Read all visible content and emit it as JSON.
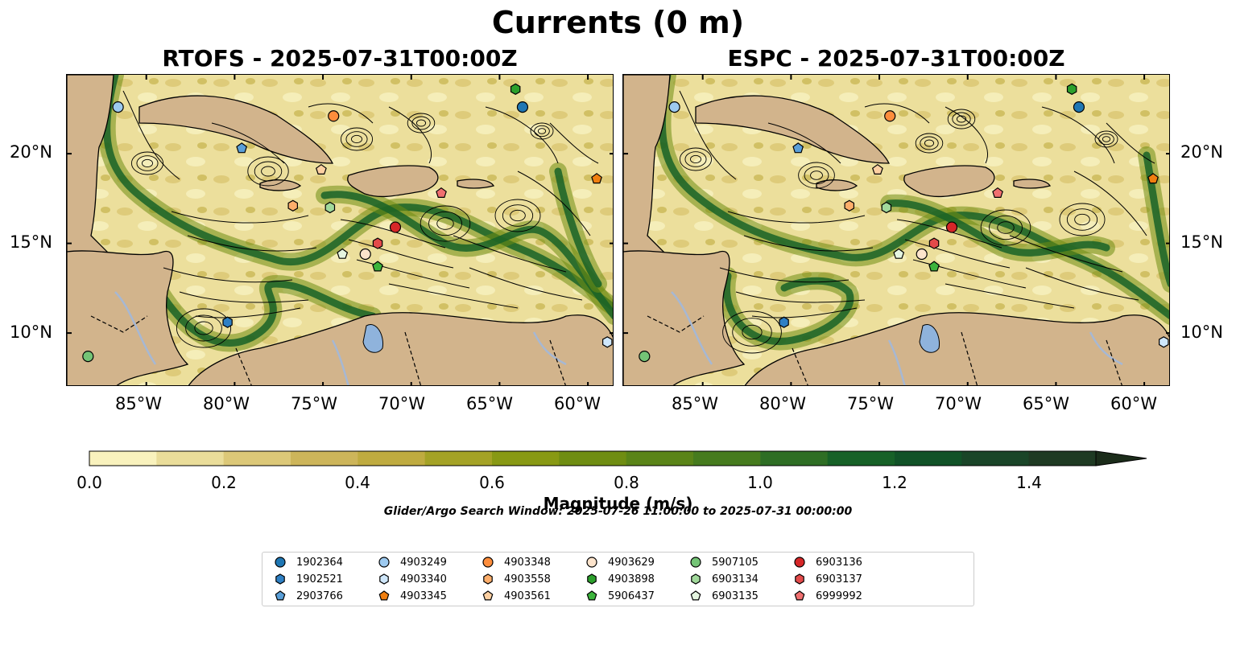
{
  "figure": {
    "title": "Currents (0 m)",
    "panels": [
      {
        "title": "RTOFS - 2025-07-31T00:00Z"
      },
      {
        "title": "ESPC - 2025-07-31T00:00Z"
      }
    ],
    "lon_ticks": [
      "85°W",
      "80°W",
      "75°W",
      "70°W",
      "65°W",
      "60°W"
    ],
    "lat_ticks": [
      "20°N",
      "15°N",
      "10°N"
    ],
    "colorbar": {
      "label": "Magnitude (m/s)",
      "ticks": [
        "0.0",
        "0.2",
        "0.4",
        "0.6",
        "0.8",
        "1.0",
        "1.2",
        "1.4"
      ],
      "range": [
        0,
        1.5
      ],
      "colors": [
        "#f9f2bd",
        "#eadd9a",
        "#dcc878",
        "#cdb55a",
        "#bfab40",
        "#a4a226",
        "#889914",
        "#6f8d12",
        "#5a8418",
        "#467b1e",
        "#2e6e24",
        "#176127",
        "#115227",
        "#1a4528",
        "#1f3a23",
        "#1b2c1a"
      ]
    },
    "search_window": "Glider/Argo Search Window: 2025-07-26 11:00:00 to 2025-07-31 00:00:00",
    "legend": [
      {
        "id": "1902364",
        "marker": "circle",
        "color": "#1f77b4"
      },
      {
        "id": "1902521",
        "marker": "hexagon",
        "color": "#2f80c4"
      },
      {
        "id": "2903766",
        "marker": "pentagon",
        "color": "#5a9fd8"
      },
      {
        "id": "4903249",
        "marker": "circle",
        "color": "#9dcaf0"
      },
      {
        "id": "4903340",
        "marker": "hexagon",
        "color": "#cfe7fb"
      },
      {
        "id": "4903345",
        "marker": "pentagon",
        "color": "#f07f10"
      },
      {
        "id": "4903348",
        "marker": "circle",
        "color": "#fd8d3c"
      },
      {
        "id": "4903558",
        "marker": "hexagon",
        "color": "#fdae6b"
      },
      {
        "id": "4903561",
        "marker": "pentagon",
        "color": "#fdd0a2"
      },
      {
        "id": "4903629",
        "marker": "circle",
        "color": "#fde4cc"
      },
      {
        "id": "4903898",
        "marker": "hexagon",
        "color": "#2ca02c"
      },
      {
        "id": "5906437",
        "marker": "pentagon",
        "color": "#3cb43c"
      },
      {
        "id": "5907105",
        "marker": "circle",
        "color": "#74c476"
      },
      {
        "id": "6903134",
        "marker": "hexagon",
        "color": "#a1d99b"
      },
      {
        "id": "6903135",
        "marker": "pentagon",
        "color": "#e5f5e0"
      },
      {
        "id": "6903136",
        "marker": "circle",
        "color": "#d62728"
      },
      {
        "id": "6903137",
        "marker": "hexagon",
        "color": "#e34a4a"
      },
      {
        "id": "6999992",
        "marker": "pentagon",
        "color": "#f07070"
      }
    ],
    "map_extent": {
      "lon": [
        -89.5,
        -58.5
      ],
      "lat": [
        7.0,
        24.4
      ]
    },
    "floats": [
      {
        "id": "4903249",
        "lon": -86.6,
        "lat": 22.6
      },
      {
        "id": "4903345",
        "lon": -59.5,
        "lat": 18.6
      },
      {
        "id": "4903348",
        "lon": -74.4,
        "lat": 22.1
      },
      {
        "id": "4903898",
        "lon": -64.1,
        "lat": 23.6
      },
      {
        "id": "1902364",
        "lon": -63.7,
        "lat": 22.6
      },
      {
        "id": "2903766",
        "lon": -79.6,
        "lat": 20.3
      },
      {
        "id": "4903561",
        "lon": -75.1,
        "lat": 19.1
      },
      {
        "id": "6999992",
        "lon": -68.3,
        "lat": 17.8
      },
      {
        "id": "4903558",
        "lon": -76.7,
        "lat": 17.1
      },
      {
        "id": "6903134",
        "lon": -74.6,
        "lat": 17.0
      },
      {
        "id": "6903136",
        "lon": -70.9,
        "lat": 15.9
      },
      {
        "id": "6903137",
        "lon": -71.9,
        "lat": 15.0
      },
      {
        "id": "6903135",
        "lon": -73.9,
        "lat": 14.4
      },
      {
        "id": "4903629",
        "lon": -72.6,
        "lat": 14.4
      },
      {
        "id": "5906437",
        "lon": -71.9,
        "lat": 13.7
      },
      {
        "id": "1902521",
        "lon": -80.4,
        "lat": 10.6
      },
      {
        "id": "5907105",
        "lon": -88.3,
        "lat": 8.7
      },
      {
        "id": "4903340",
        "lon": -58.9,
        "lat": 9.5
      }
    ]
  }
}
